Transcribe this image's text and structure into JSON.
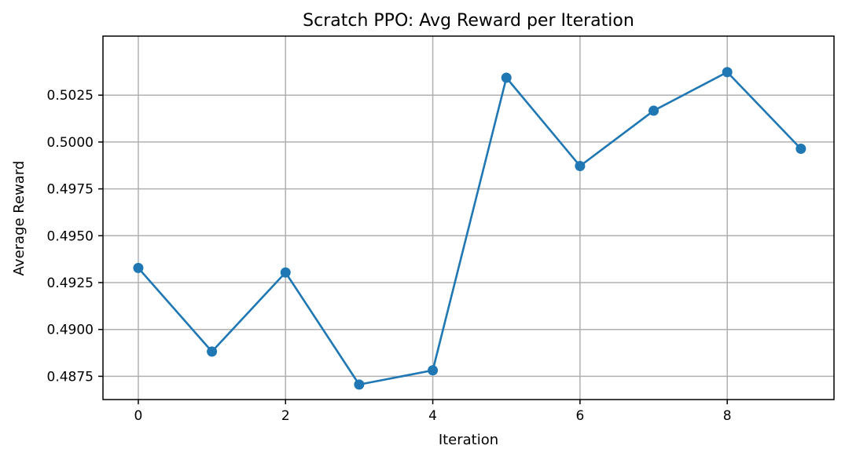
{
  "chart_data": {
    "type": "line",
    "title": "Scratch PPO: Avg Reward per Iteration",
    "xlabel": "Iteration",
    "ylabel": "Average Reward",
    "x": [
      0,
      1,
      2,
      3,
      4,
      5,
      6,
      7,
      8,
      9
    ],
    "series": [
      {
        "values": [
          0.49328,
          0.48882,
          0.49304,
          0.48706,
          0.48782,
          0.50343,
          0.49872,
          0.50167,
          0.50373,
          0.49964
        ],
        "color": "#1f77b4",
        "marker": "circle"
      }
    ],
    "xlim": [
      -0.48,
      9.45
    ],
    "ylim": [
      0.48626,
      0.50565
    ],
    "xticks": [
      0,
      2,
      4,
      6,
      8
    ],
    "xtick_labels": [
      "0",
      "2",
      "4",
      "6",
      "8"
    ],
    "yticks": [
      0.4875,
      0.49,
      0.4925,
      0.495,
      0.4975,
      0.5,
      0.5025
    ],
    "ytick_labels": [
      "0.4875",
      "0.4900",
      "0.4925",
      "0.4950",
      "0.4975",
      "0.5000",
      "0.5025"
    ],
    "grid": true,
    "legend": false
  }
}
